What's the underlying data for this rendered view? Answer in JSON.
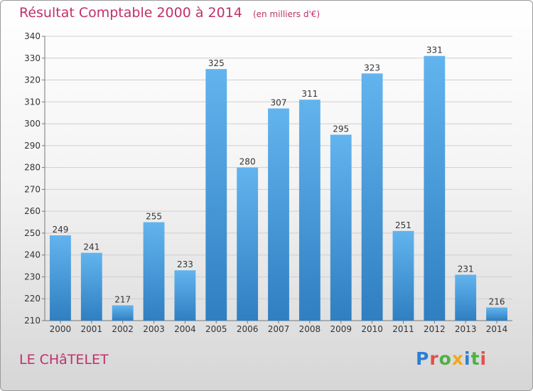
{
  "header": {
    "title": "Résultat Comptable 2000 à 2014",
    "subtitle": "(en milliers d'€)"
  },
  "footer": {
    "commune": "LE CHâTELET",
    "brand": "Proxiti"
  },
  "colors": {
    "title": "#c0306a",
    "bar_light": "#62b4ee",
    "bar_dark": "#2f7fc1",
    "brand_letters": [
      "#2a7fd4",
      "#e0504a",
      "#4fb043",
      "#f2a81c",
      "#2a7fd4",
      "#4fb043",
      "#e0504a"
    ]
  },
  "chart_data": {
    "type": "bar",
    "title": "Résultat Comptable 2000 à 2014",
    "subtitle": "(en milliers d'€)",
    "categories": [
      "2000",
      "2001",
      "2002",
      "2003",
      "2004",
      "2005",
      "2006",
      "2007",
      "2008",
      "2009",
      "2010",
      "2011",
      "2012",
      "2013",
      "2014"
    ],
    "values": [
      249,
      241,
      217,
      255,
      233,
      325,
      280,
      307,
      311,
      295,
      323,
      251,
      331,
      231,
      216
    ],
    "ylim": [
      210,
      340
    ],
    "yticks": [
      210,
      220,
      230,
      240,
      250,
      260,
      270,
      280,
      290,
      300,
      310,
      320,
      330,
      340
    ],
    "grid": true,
    "legend": "none"
  }
}
